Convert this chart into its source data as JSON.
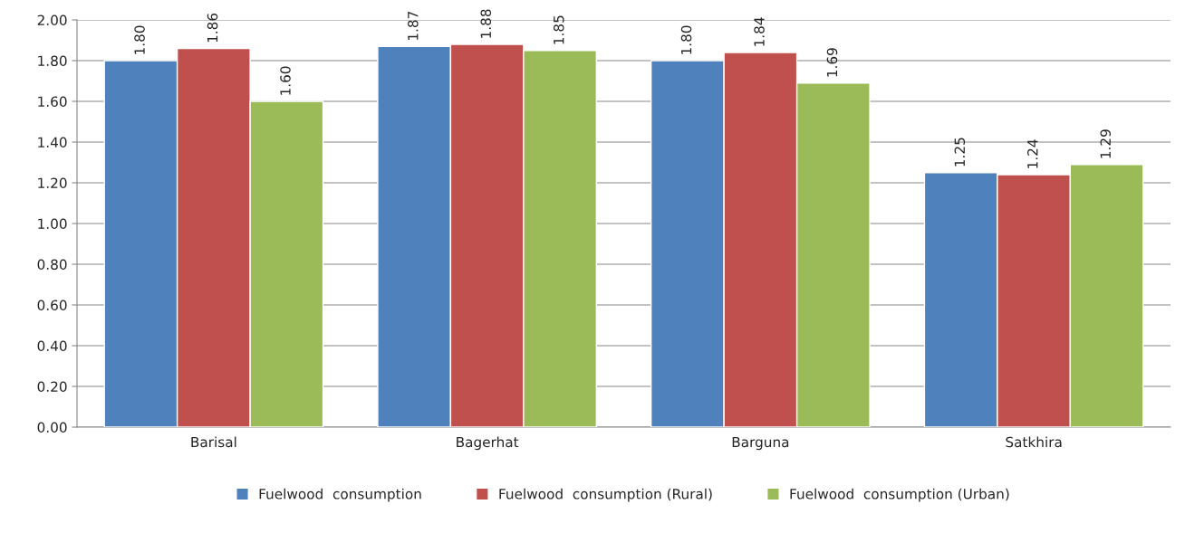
{
  "chart_data": {
    "type": "bar",
    "categories": [
      "Barisal",
      "Bagerhat",
      "Barguna",
      "Satkhira"
    ],
    "series": [
      {
        "name": "Fuelwood  consumption",
        "color": "#4f81bd",
        "values": [
          1.8,
          1.87,
          1.8,
          1.25
        ],
        "value_labels": [
          "1.80",
          "1.87",
          "1.80",
          "1.25"
        ]
      },
      {
        "name": "Fuelwood  consumption (Rural)",
        "color": "#c0504d",
        "values": [
          1.86,
          1.88,
          1.84,
          1.24
        ],
        "value_labels": [
          "1.86",
          "1.88",
          "1.84",
          "1.24"
        ]
      },
      {
        "name": "Fuelwood  consumption (Urban)",
        "color": "#9bbb59",
        "values": [
          1.6,
          1.85,
          1.69,
          1.29
        ],
        "value_labels": [
          "1.60",
          "1.85",
          "1.69",
          "1.29"
        ]
      }
    ],
    "ylim": [
      0,
      2
    ],
    "yticks": [
      {
        "value": 0,
        "label": "0.00"
      },
      {
        "value": 0.2,
        "label": "0.20"
      },
      {
        "value": 0.4,
        "label": "0.40"
      },
      {
        "value": 0.6,
        "label": "0.60"
      },
      {
        "value": 0.8,
        "label": "0.80"
      },
      {
        "value": 1.0,
        "label": "1.00"
      },
      {
        "value": 1.2,
        "label": "1.20"
      },
      {
        "value": 1.4,
        "label": "1.40"
      },
      {
        "value": 1.6,
        "label": "1.60"
      },
      {
        "value": 1.8,
        "label": "1.80"
      },
      {
        "value": 2.0,
        "label": "2.00"
      }
    ],
    "grid": "y",
    "legend": "bottom"
  }
}
